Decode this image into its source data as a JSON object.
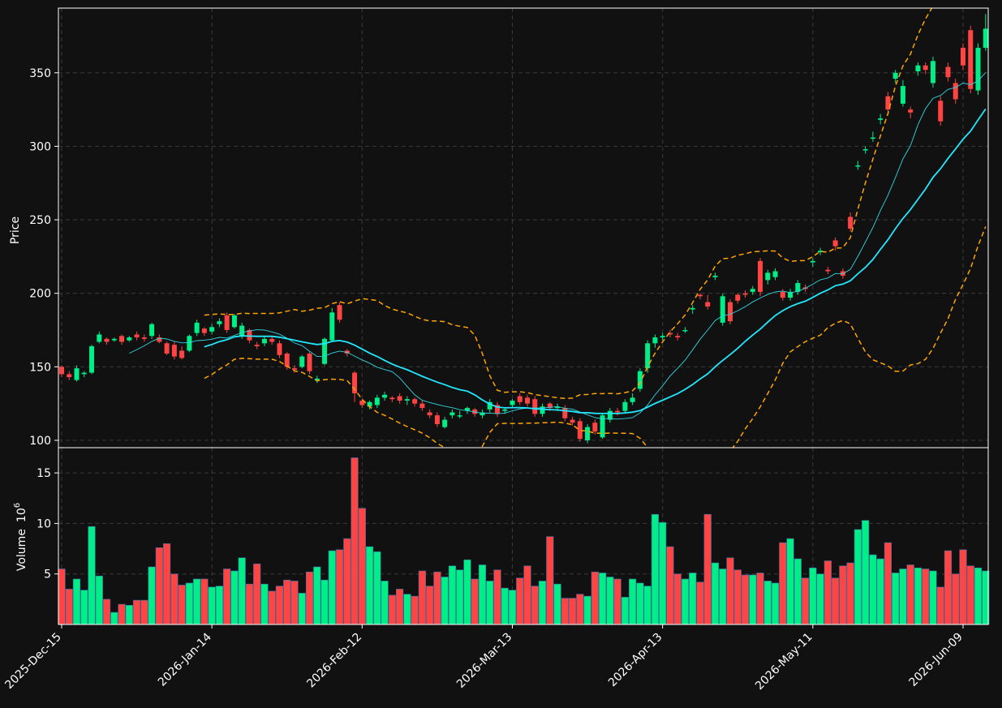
{
  "chart_data": {
    "type": "candlestick",
    "colors": {
      "background": "#111111",
      "up": "#00ee88",
      "down": "#ff4444",
      "grid": "#3a3a3a",
      "ma_fast": "#30d5e0",
      "ma_slow": "#22e8ff",
      "bands": "#ffa500",
      "axis": "#ffffff"
    },
    "price_panel": {
      "ylabel": "Price",
      "ylim": [
        95,
        394
      ],
      "yticks": [
        100,
        150,
        200,
        250,
        300,
        350
      ],
      "grid": true
    },
    "volume_panel": {
      "ylabel": "Volume",
      "ylabel_exponent": "6",
      "ylim": [
        0,
        17.5
      ],
      "yticks": [
        5,
        10,
        15
      ],
      "grid": true
    },
    "x_tick_labels": [
      "2025-Dec-15",
      "2026-Jan-14",
      "2026-Feb-12",
      "2026-Mar-13",
      "2026-Apr-13",
      "2026-May-11",
      "2026-Jun-09"
    ],
    "x_tick_index": [
      0,
      20,
      40,
      60,
      80,
      100,
      120
    ],
    "sessions": 124,
    "ma_fast_window": 10,
    "ma_slow_window": 20,
    "band_window": 20,
    "band_k": 2,
    "close": [
      145,
      143,
      149,
      146,
      164,
      172,
      167,
      169,
      167,
      170,
      170,
      169,
      179,
      167,
      159,
      157,
      156,
      171,
      180,
      173,
      177,
      181,
      175,
      185,
      178,
      168,
      164,
      169,
      167,
      158,
      150,
      148,
      157,
      147,
      142,
      169,
      187,
      182,
      159,
      132,
      124,
      126,
      129,
      131,
      128,
      127,
      128,
      125,
      122,
      117,
      111,
      114,
      119,
      117,
      122,
      118,
      119,
      126,
      118,
      121,
      127,
      126,
      125,
      118,
      123,
      122,
      123,
      115,
      112,
      101,
      109,
      106,
      117,
      120,
      119,
      126,
      129,
      147,
      166,
      170,
      171,
      172,
      170,
      175,
      190,
      198,
      191,
      212,
      198,
      181,
      195,
      199,
      203,
      201,
      214,
      215,
      197,
      201,
      207,
      203,
      222,
      229,
      215,
      232,
      212,
      244,
      287,
      298,
      306,
      319,
      325,
      350,
      341,
      323,
      355,
      352,
      358,
      317,
      347,
      332,
      355,
      339,
      367,
      380
    ],
    "open": [
      150,
      145,
      141,
      145,
      146,
      167,
      169,
      168,
      171,
      168,
      172,
      170,
      171,
      170,
      166,
      165,
      161,
      161,
      173,
      176,
      174,
      179,
      185,
      177,
      171,
      175,
      165,
      166,
      169,
      166,
      159,
      149,
      150,
      159,
      141,
      152,
      168,
      192,
      161,
      146,
      127,
      123,
      124,
      129,
      129,
      130,
      127,
      128,
      125,
      119,
      117,
      109,
      117,
      117,
      120,
      121,
      117,
      121,
      124,
      120,
      124,
      130,
      129,
      128,
      118,
      125,
      122,
      122,
      114,
      113,
      100,
      112,
      102,
      114,
      120,
      120,
      126,
      135,
      149,
      166,
      170,
      173,
      171,
      175,
      189,
      199,
      194,
      211,
      180,
      194,
      199,
      200,
      201,
      222,
      209,
      211,
      201,
      197,
      201,
      204,
      221,
      228,
      216,
      236,
      215,
      252,
      287,
      298,
      306,
      318,
      334,
      346,
      329,
      325,
      351,
      355,
      343,
      331,
      354,
      343,
      367,
      379,
      338,
      367
    ],
    "high": [
      151,
      147,
      151,
      147,
      165,
      174,
      170,
      170,
      172,
      171,
      174,
      172,
      180,
      172,
      167,
      167,
      164,
      172,
      182,
      177,
      179,
      183,
      187,
      186,
      180,
      176,
      167,
      171,
      171,
      168,
      160,
      151,
      158,
      160,
      144,
      170,
      190,
      194,
      162,
      147,
      128,
      127,
      131,
      133,
      130,
      132,
      130,
      129,
      127,
      121,
      119,
      116,
      121,
      120,
      123,
      122,
      121,
      128,
      126,
      122,
      128,
      132,
      131,
      130,
      125,
      126,
      125,
      124,
      116,
      115,
      111,
      114,
      118,
      122,
      122,
      128,
      132,
      149,
      168,
      172,
      173,
      175,
      173,
      177,
      192,
      200,
      199,
      214,
      200,
      196,
      200,
      202,
      205,
      224,
      216,
      217,
      203,
      203,
      209,
      206,
      224,
      231,
      218,
      238,
      217,
      255,
      290,
      300,
      310,
      322,
      337,
      352,
      345,
      327,
      357,
      357,
      361,
      334,
      357,
      346,
      370,
      382,
      370,
      390
    ],
    "low": [
      143,
      141,
      140,
      143,
      145,
      166,
      165,
      167,
      165,
      167,
      168,
      167,
      169,
      166,
      158,
      155,
      155,
      160,
      171,
      171,
      172,
      177,
      173,
      176,
      169,
      166,
      162,
      164,
      165,
      156,
      148,
      146,
      149,
      145,
      139,
      151,
      167,
      180,
      157,
      126,
      122,
      121,
      122,
      127,
      126,
      125,
      124,
      123,
      120,
      115,
      109,
      108,
      115,
      115,
      118,
      116,
      115,
      119,
      116,
      118,
      122,
      124,
      123,
      116,
      116,
      120,
      120,
      113,
      110,
      99,
      98,
      104,
      101,
      112,
      117,
      118,
      124,
      133,
      146,
      163,
      168,
      170,
      168,
      173,
      186,
      196,
      189,
      209,
      178,
      179,
      193,
      197,
      199,
      198,
      206,
      209,
      195,
      195,
      199,
      201,
      218,
      226,
      213,
      229,
      210,
      242,
      284,
      295,
      303,
      315,
      322,
      343,
      327,
      319,
      348,
      349,
      340,
      314,
      344,
      329,
      352,
      336,
      335,
      365
    ],
    "volume": [
      5.5,
      3.5,
      4.5,
      3.4,
      9.7,
      4.8,
      2.5,
      1.2,
      2.0,
      1.9,
      2.4,
      2.4,
      5.7,
      7.6,
      8.0,
      5.0,
      3.9,
      4.1,
      4.5,
      4.5,
      3.7,
      3.8,
      5.5,
      5.3,
      6.6,
      4.0,
      6.0,
      4.0,
      3.3,
      3.8,
      4.4,
      4.3,
      3.1,
      5.2,
      5.7,
      4.4,
      7.3,
      7.4,
      8.5,
      16.5,
      11.5,
      7.7,
      7.2,
      4.3,
      2.9,
      3.5,
      3.0,
      2.8,
      5.3,
      3.8,
      5.2,
      4.7,
      5.8,
      5.4,
      6.4,
      4.5,
      5.9,
      4.3,
      5.4,
      3.6,
      3.4,
      4.6,
      5.8,
      3.8,
      4.3,
      8.7,
      4.0,
      2.6,
      2.6,
      3.0,
      2.8,
      5.2,
      5.1,
      4.7,
      4.5,
      2.7,
      4.5,
      4.1,
      3.8,
      10.9,
      10.1,
      7.7,
      5.0,
      4.5,
      5.1,
      4.2,
      10.9,
      6.1,
      5.5,
      6.6,
      5.4,
      4.9,
      4.9,
      5.1,
      4.3,
      4.1,
      8.1,
      8.5,
      6.5,
      4.6,
      5.6,
      5.0,
      6.3,
      4.6,
      5.8,
      6.1,
      9.4,
      10.3,
      6.9,
      6.5,
      8.1,
      5.1,
      5.5,
      5.9,
      5.6,
      5.5,
      5.3,
      3.7,
      7.3,
      5.0,
      7.4,
      5.8,
      5.6,
      5.3
    ]
  }
}
